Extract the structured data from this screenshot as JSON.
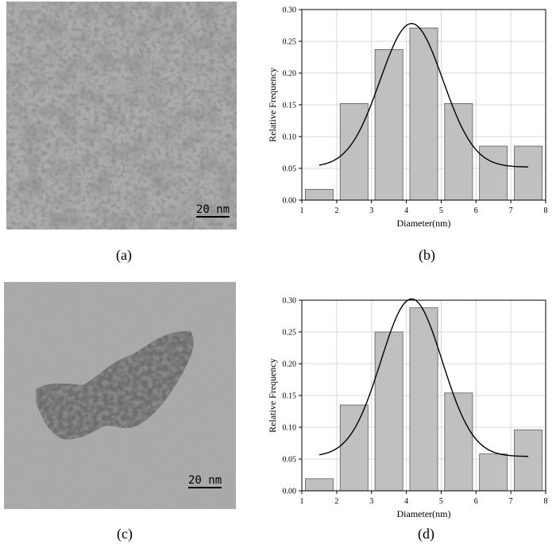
{
  "panels": {
    "a": {
      "label": "(a)",
      "scale_text": "20 nm"
    },
    "b": {
      "label": "(b)"
    },
    "c": {
      "label": "(c)",
      "scale_text": "20 nm"
    },
    "d": {
      "label": "(d)"
    }
  },
  "chart_data": [
    {
      "id": "b",
      "type": "bar",
      "xlabel": "Diameter(nm)",
      "ylabel": "Relative Frequency",
      "xlim": [
        1,
        8
      ],
      "ylim": [
        0,
        0.3
      ],
      "xticks": [
        "1",
        "2",
        "3",
        "4",
        "5",
        "6",
        "7",
        "8"
      ],
      "yticks": [
        "0.00",
        "0.05",
        "0.10",
        "0.15",
        "0.20",
        "0.25",
        "0.30"
      ],
      "bars": [
        {
          "x0": 1.1,
          "x1": 1.9,
          "value": 0.017
        },
        {
          "x0": 2.1,
          "x1": 2.9,
          "value": 0.152
        },
        {
          "x0": 3.1,
          "x1": 3.9,
          "value": 0.237
        },
        {
          "x0": 4.1,
          "x1": 4.9,
          "value": 0.271
        },
        {
          "x0": 5.1,
          "x1": 5.9,
          "value": 0.152
        },
        {
          "x0": 6.1,
          "x1": 6.9,
          "value": 0.085
        },
        {
          "x0": 7.1,
          "x1": 7.9,
          "value": 0.085
        }
      ],
      "fit_curve": {
        "type": "gaussian",
        "x_start": 1.5,
        "x_end": 7.5,
        "baseline": 0.052,
        "amplitude": 0.226,
        "center": 4.15,
        "sigma": 0.9
      },
      "grid": true,
      "bar_color": "#c0c0c0"
    },
    {
      "id": "d",
      "type": "bar",
      "xlabel": "Diameter(nm)",
      "ylabel": "Relative Frequency",
      "xlim": [
        1,
        8
      ],
      "ylim": [
        0,
        0.3
      ],
      "xticks": [
        "1",
        "2",
        "3",
        "4",
        "5",
        "6",
        "7",
        "8"
      ],
      "yticks": [
        "0.00",
        "0.05",
        "0.10",
        "0.15",
        "0.20",
        "0.25",
        "0.30"
      ],
      "bars": [
        {
          "x0": 1.1,
          "x1": 1.9,
          "value": 0.019
        },
        {
          "x0": 2.1,
          "x1": 2.9,
          "value": 0.135
        },
        {
          "x0": 3.1,
          "x1": 3.9,
          "value": 0.25
        },
        {
          "x0": 4.1,
          "x1": 4.9,
          "value": 0.288
        },
        {
          "x0": 5.1,
          "x1": 5.9,
          "value": 0.154
        },
        {
          "x0": 6.1,
          "x1": 6.9,
          "value": 0.058
        },
        {
          "x0": 7.1,
          "x1": 7.9,
          "value": 0.096
        }
      ],
      "fit_curve": {
        "type": "gaussian",
        "x_start": 1.5,
        "x_end": 7.5,
        "baseline": 0.054,
        "amplitude": 0.248,
        "center": 4.15,
        "sigma": 0.88
      },
      "grid": true,
      "bar_color": "#c0c0c0"
    }
  ]
}
